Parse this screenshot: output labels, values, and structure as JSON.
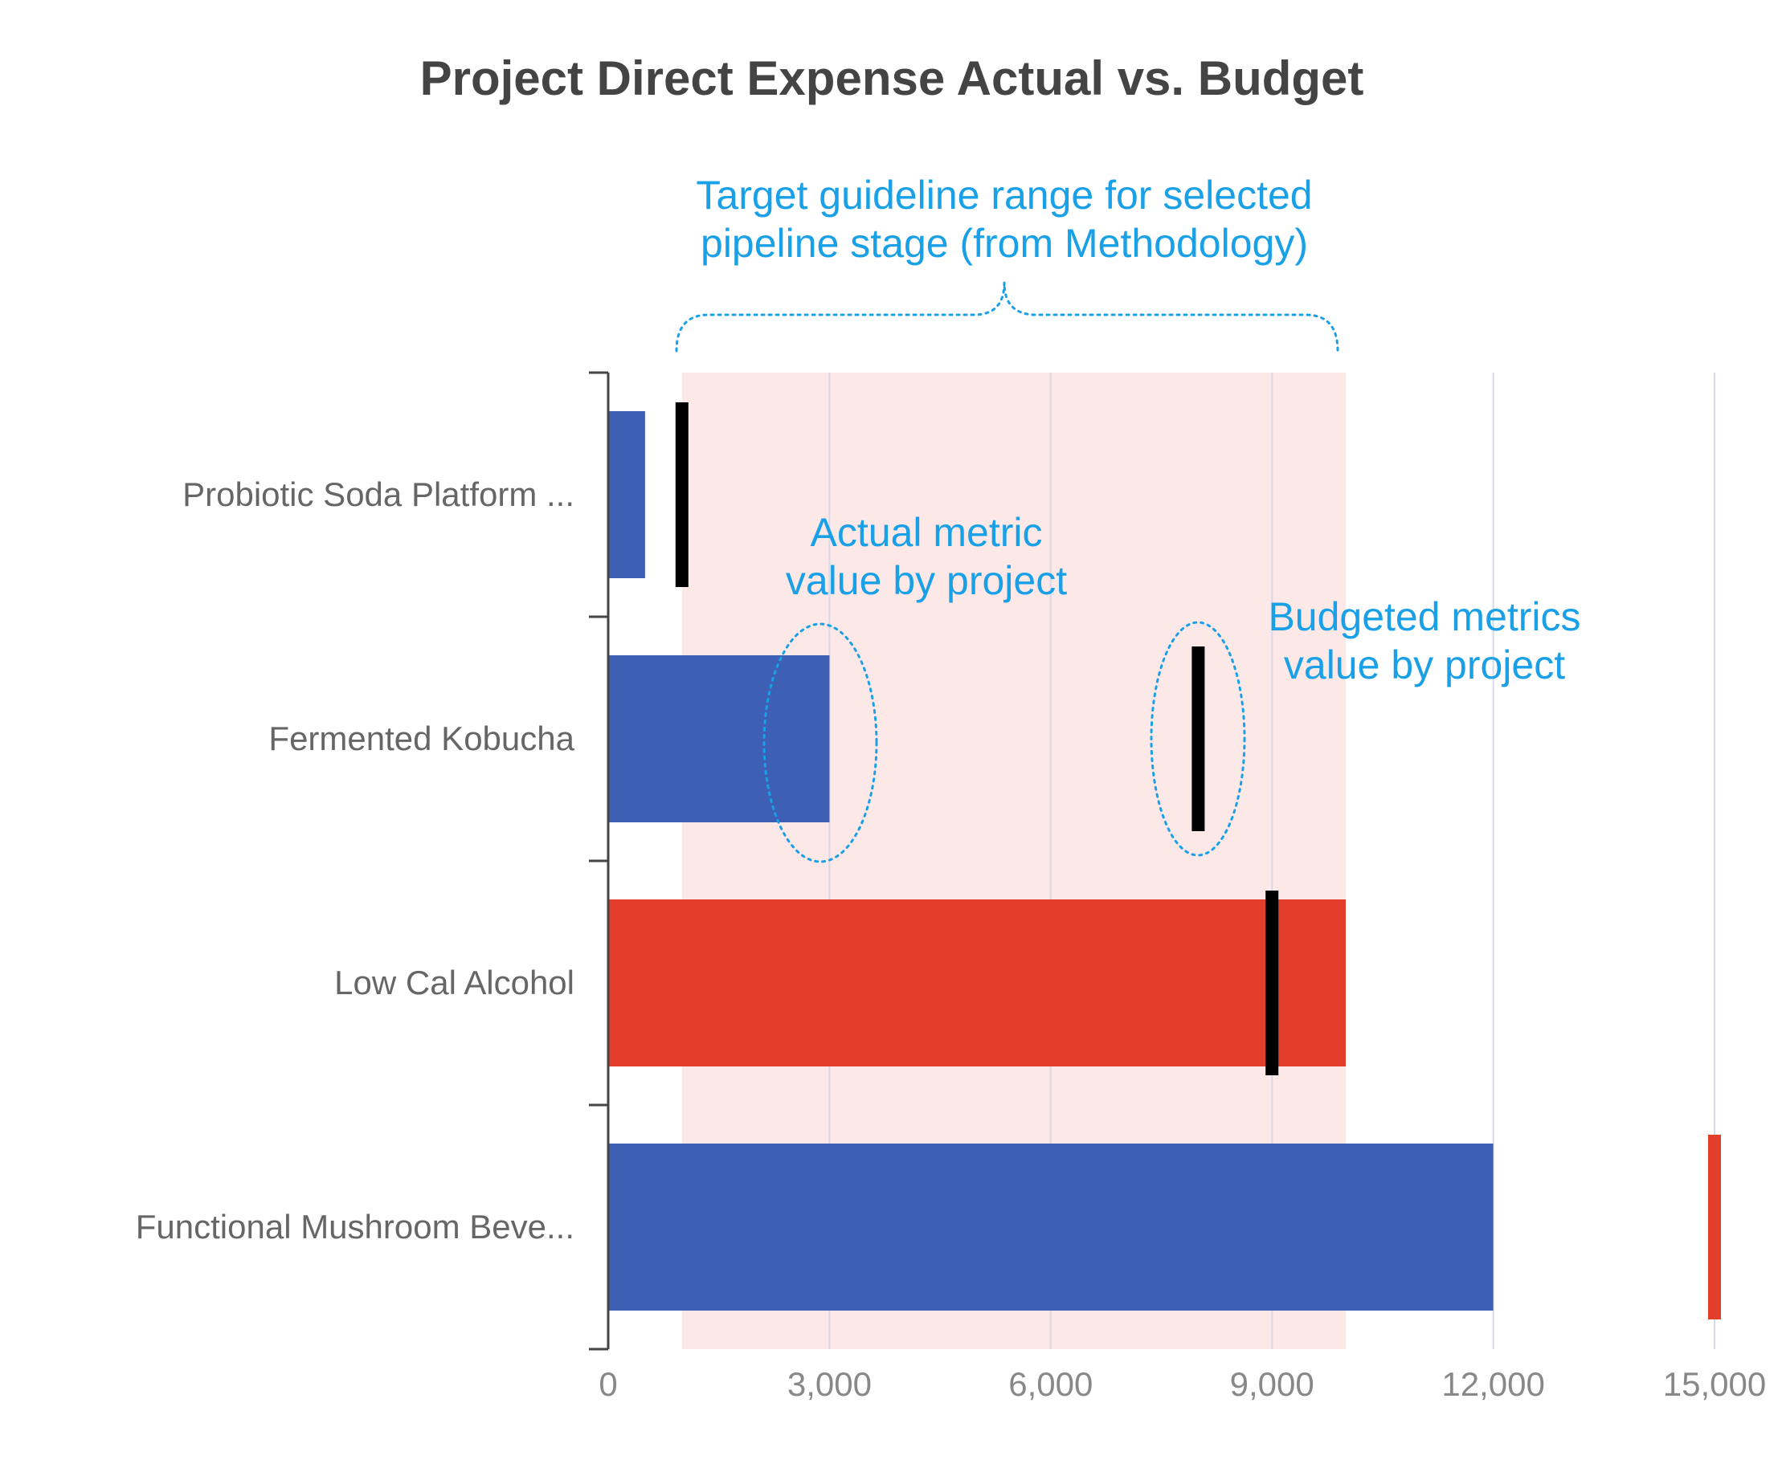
{
  "chart_data": {
    "type": "bar",
    "orientation": "horizontal",
    "title": "Project Direct Expense Actual vs. Budget",
    "categories": [
      "Probiotic Soda Platform ...",
      "Fermented Kobucha",
      "Low Cal Alcohol",
      "Functional Mushroom Beve..."
    ],
    "series": [
      {
        "name": "Actual",
        "values": [
          500,
          3000,
          10000,
          12000
        ],
        "colors": [
          "#3d5fb4",
          "#3d5fb4",
          "#e33d2c",
          "#3d5fb4"
        ]
      },
      {
        "name": "Budget",
        "style": "marker",
        "values": [
          1000,
          8000,
          9000,
          15000
        ],
        "colors": [
          "#000000",
          "#000000",
          "#000000",
          "#e33d2c"
        ]
      }
    ],
    "target_range": [
      1000,
      10000
    ],
    "xlim": [
      0,
      15000
    ],
    "xticks": [
      0,
      3000,
      6000,
      9000,
      12000,
      15000
    ],
    "xtick_labels": [
      "0",
      "3,000",
      "6,000",
      "9,000",
      "12,000",
      "15,000"
    ],
    "grid": true,
    "annotations": {
      "target_range": [
        "Target guideline range for selected",
        "pipeline stage (from Methodology)"
      ],
      "actual": [
        "Actual metric",
        "value by project"
      ],
      "budget": [
        "Budgeted metrics",
        "value by project"
      ]
    }
  },
  "colors": {
    "actual": "#3d5fb4",
    "over_budget": "#e33d2c",
    "budget_marker": "#000000",
    "target_band": "#fde8e8",
    "annotation": "#1aa0e6",
    "grid": "#d9d9e8",
    "axis": "#444444"
  }
}
